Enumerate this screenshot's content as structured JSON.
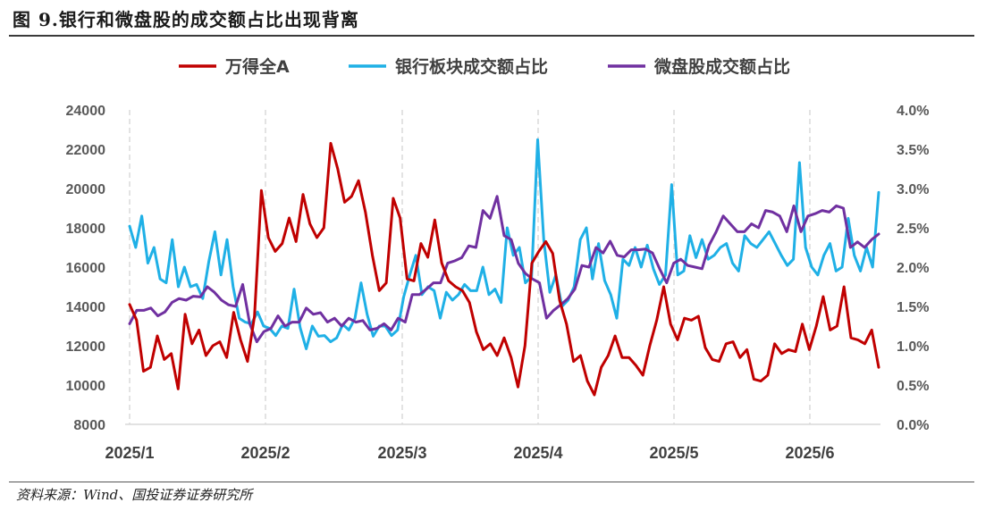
{
  "title": "图 9.银行和微盘股的成交额占比出现背离",
  "source": "资料来源：Wind、国投证券证券研究所",
  "chart_data": {
    "type": "line",
    "x_labels": [
      "2025/1",
      "2025/2",
      "2025/3",
      "2025/4",
      "2025/5",
      "2025/6"
    ],
    "left_axis": {
      "ticks": [
        "8000",
        "10000",
        "12000",
        "14000",
        "16000",
        "18000",
        "20000",
        "22000",
        "24000"
      ],
      "ylim": [
        8000,
        24000
      ]
    },
    "right_axis": {
      "ticks": [
        "0.0%",
        "0.5%",
        "1.0%",
        "1.5%",
        "2.0%",
        "2.5%",
        "3.0%",
        "3.5%",
        "4.0%"
      ],
      "ylim": [
        0,
        4
      ]
    },
    "grid": "vertical dashed at month starts",
    "legend_position": "top",
    "series": [
      {
        "name": "万得全A",
        "axis": "left",
        "color": "#c00000",
        "values": [
          14100,
          13300,
          10700,
          10900,
          12500,
          11300,
          11600,
          9800,
          13600,
          12100,
          12800,
          11500,
          12000,
          12200,
          11400,
          13700,
          12300,
          11200,
          13500,
          19900,
          17500,
          16800,
          17200,
          18500,
          17300,
          19700,
          18200,
          17500,
          18000,
          22300,
          21000,
          19300,
          19600,
          20400,
          18800,
          16600,
          14800,
          15200,
          19500,
          18500,
          15400,
          15300,
          17200,
          16500,
          18400,
          16200,
          15300,
          15000,
          14800,
          14200,
          12700,
          11800,
          12100,
          11500,
          12400,
          11400,
          9900,
          12000,
          16200,
          16800,
          17300,
          16700,
          14300,
          13100,
          11200,
          11500,
          10200,
          9500,
          10900,
          11500,
          12500,
          11400,
          11400,
          11000,
          10500,
          12000,
          13300,
          15000,
          13100,
          12300,
          13400,
          13300,
          13500,
          11900,
          11300,
          11200,
          12100,
          12200,
          11400,
          11800,
          10300,
          10200,
          10500,
          12100,
          11600,
          11800,
          11700,
          13100,
          11800,
          13000,
          14500,
          12800,
          13000,
          15000,
          12400,
          12300,
          12100,
          12800,
          10900
        ]
      },
      {
        "name": "银行板块成交额占比",
        "axis": "right",
        "color": "#1fb0e6",
        "values": [
          2.52,
          2.25,
          2.65,
          2.05,
          2.25,
          1.85,
          1.8,
          2.35,
          1.75,
          2.0,
          1.75,
          1.78,
          1.6,
          2.07,
          2.45,
          1.9,
          2.35,
          1.75,
          1.35,
          1.3,
          1.28,
          1.43,
          1.25,
          1.22,
          1.13,
          1.25,
          1.22,
          1.72,
          1.23,
          0.96,
          1.25,
          1.12,
          1.13,
          1.05,
          1.1,
          1.27,
          1.2,
          1.35,
          1.8,
          1.4,
          1.12,
          1.25,
          1.25,
          1.13,
          1.2,
          1.62,
          1.9,
          2.15,
          1.65,
          1.75,
          1.7,
          1.35,
          1.68,
          1.58,
          1.65,
          1.78,
          1.7,
          1.7,
          2.0,
          1.65,
          1.72,
          1.55,
          2.5,
          2.15,
          2.25,
          1.8,
          1.88,
          3.62,
          2.35,
          1.68,
          1.9,
          1.5,
          1.58,
          1.75,
          2.35,
          2.5,
          1.85,
          2.3,
          1.83,
          1.65,
          1.35,
          2.1,
          2.02,
          2.25,
          2.0,
          2.28,
          1.98,
          1.78,
          1.9,
          3.05,
          1.9,
          1.95,
          2.4,
          2.12,
          2.35,
          2.1,
          2.15,
          2.25,
          2.3,
          2.05,
          1.95,
          2.4,
          2.3,
          2.25,
          2.35,
          2.45,
          2.3,
          2.15,
          2.02,
          2.1,
          3.33,
          2.25,
          2.0,
          1.9,
          2.15,
          2.3,
          1.95,
          2.0,
          2.62,
          2.15,
          1.95,
          2.25,
          2.0,
          2.95
        ]
      },
      {
        "name": "微盘股成交额占比",
        "axis": "right",
        "color": "#7030a0",
        "values": [
          1.28,
          1.45,
          1.45,
          1.48,
          1.38,
          1.43,
          1.55,
          1.6,
          1.58,
          1.63,
          1.62,
          1.75,
          1.68,
          1.58,
          1.52,
          1.5,
          1.78,
          1.28,
          1.05,
          1.18,
          1.22,
          1.38,
          1.25,
          1.3,
          1.3,
          1.48,
          1.4,
          1.42,
          1.3,
          1.35,
          1.25,
          1.35,
          1.3,
          1.32,
          1.2,
          1.22,
          1.28,
          1.2,
          1.35,
          1.3,
          1.65,
          1.65,
          1.72,
          1.8,
          1.8,
          2.05,
          2.08,
          2.12,
          2.27,
          2.25,
          2.72,
          2.62,
          2.9,
          2.4,
          2.35,
          2.05,
          1.92,
          1.85,
          1.8,
          1.35,
          1.45,
          1.52,
          1.6,
          1.72,
          2.02,
          2.0,
          2.25,
          2.18,
          2.33,
          2.15,
          2.13,
          2.22,
          2.22,
          2.23,
          2.18,
          1.98,
          1.8,
          2.05,
          2.1,
          2.02,
          2.0,
          1.98,
          2.28,
          2.45,
          2.65,
          2.55,
          2.45,
          2.45,
          2.55,
          2.5,
          2.72,
          2.7,
          2.65,
          2.45,
          2.78,
          2.45,
          2.65,
          2.68,
          2.72,
          2.7,
          2.78,
          2.75,
          2.25,
          2.32,
          2.25,
          2.35,
          2.42
        ]
      }
    ]
  }
}
